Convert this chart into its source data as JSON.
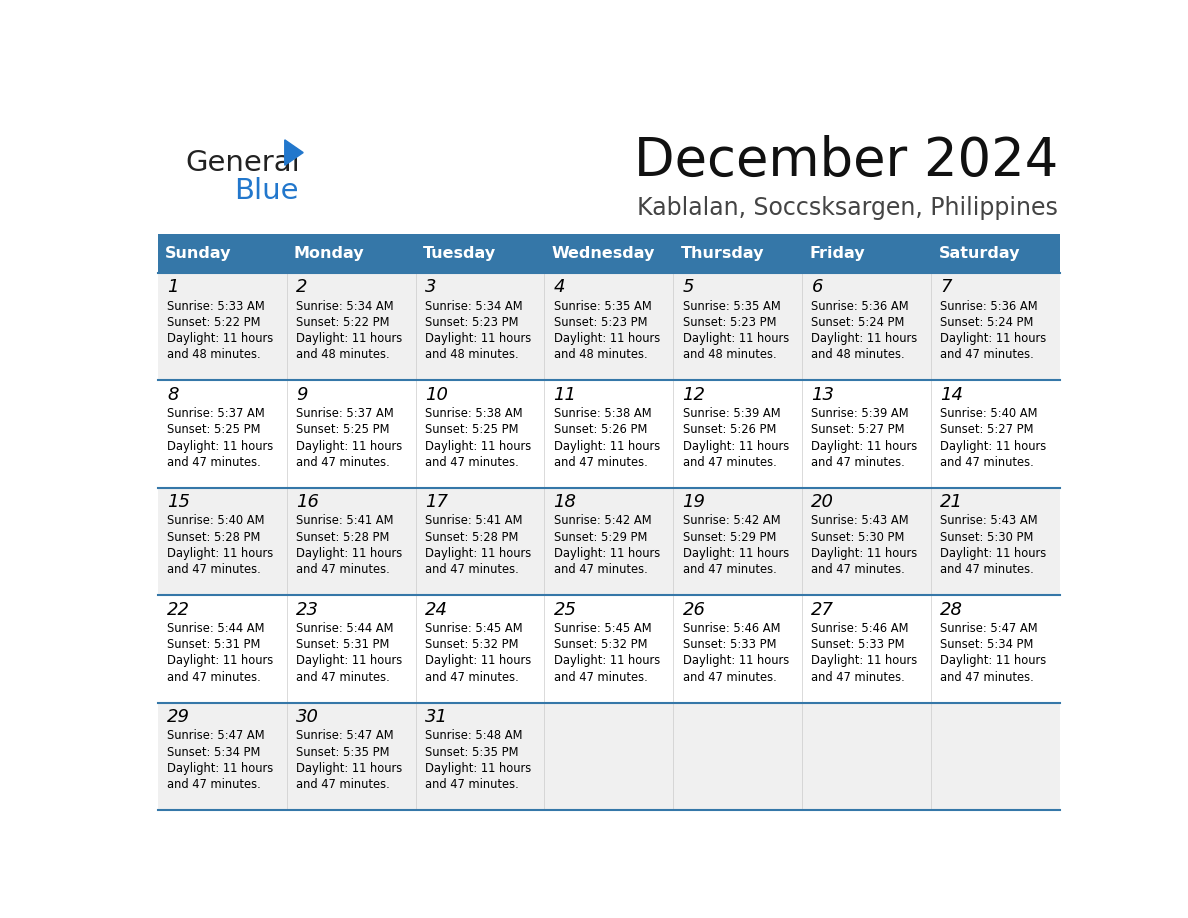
{
  "title": "December 2024",
  "subtitle": "Kablalan, Soccsksargen, Philippines",
  "header_color": "#3577a8",
  "header_text_color": "#ffffff",
  "days_of_week": [
    "Sunday",
    "Monday",
    "Tuesday",
    "Wednesday",
    "Thursday",
    "Friday",
    "Saturday"
  ],
  "bg_color": "#ffffff",
  "row_alt_color": "#f0f0f0",
  "cell_text_color": "#000000",
  "divider_color": "#3577a8",
  "logo_color1": "#222222",
  "logo_color2": "#2277cc",
  "calendar": [
    [
      {
        "day": 1,
        "sunrise": "5:33 AM",
        "sunset": "5:22 PM",
        "daylight": "11 hours and 48 minutes."
      },
      {
        "day": 2,
        "sunrise": "5:34 AM",
        "sunset": "5:22 PM",
        "daylight": "11 hours and 48 minutes."
      },
      {
        "day": 3,
        "sunrise": "5:34 AM",
        "sunset": "5:23 PM",
        "daylight": "11 hours and 48 minutes."
      },
      {
        "day": 4,
        "sunrise": "5:35 AM",
        "sunset": "5:23 PM",
        "daylight": "11 hours and 48 minutes."
      },
      {
        "day": 5,
        "sunrise": "5:35 AM",
        "sunset": "5:23 PM",
        "daylight": "11 hours and 48 minutes."
      },
      {
        "day": 6,
        "sunrise": "5:36 AM",
        "sunset": "5:24 PM",
        "daylight": "11 hours and 48 minutes."
      },
      {
        "day": 7,
        "sunrise": "5:36 AM",
        "sunset": "5:24 PM",
        "daylight": "11 hours and 47 minutes."
      }
    ],
    [
      {
        "day": 8,
        "sunrise": "5:37 AM",
        "sunset": "5:25 PM",
        "daylight": "11 hours and 47 minutes."
      },
      {
        "day": 9,
        "sunrise": "5:37 AM",
        "sunset": "5:25 PM",
        "daylight": "11 hours and 47 minutes."
      },
      {
        "day": 10,
        "sunrise": "5:38 AM",
        "sunset": "5:25 PM",
        "daylight": "11 hours and 47 minutes."
      },
      {
        "day": 11,
        "sunrise": "5:38 AM",
        "sunset": "5:26 PM",
        "daylight": "11 hours and 47 minutes."
      },
      {
        "day": 12,
        "sunrise": "5:39 AM",
        "sunset": "5:26 PM",
        "daylight": "11 hours and 47 minutes."
      },
      {
        "day": 13,
        "sunrise": "5:39 AM",
        "sunset": "5:27 PM",
        "daylight": "11 hours and 47 minutes."
      },
      {
        "day": 14,
        "sunrise": "5:40 AM",
        "sunset": "5:27 PM",
        "daylight": "11 hours and 47 minutes."
      }
    ],
    [
      {
        "day": 15,
        "sunrise": "5:40 AM",
        "sunset": "5:28 PM",
        "daylight": "11 hours and 47 minutes."
      },
      {
        "day": 16,
        "sunrise": "5:41 AM",
        "sunset": "5:28 PM",
        "daylight": "11 hours and 47 minutes."
      },
      {
        "day": 17,
        "sunrise": "5:41 AM",
        "sunset": "5:28 PM",
        "daylight": "11 hours and 47 minutes."
      },
      {
        "day": 18,
        "sunrise": "5:42 AM",
        "sunset": "5:29 PM",
        "daylight": "11 hours and 47 minutes."
      },
      {
        "day": 19,
        "sunrise": "5:42 AM",
        "sunset": "5:29 PM",
        "daylight": "11 hours and 47 minutes."
      },
      {
        "day": 20,
        "sunrise": "5:43 AM",
        "sunset": "5:30 PM",
        "daylight": "11 hours and 47 minutes."
      },
      {
        "day": 21,
        "sunrise": "5:43 AM",
        "sunset": "5:30 PM",
        "daylight": "11 hours and 47 minutes."
      }
    ],
    [
      {
        "day": 22,
        "sunrise": "5:44 AM",
        "sunset": "5:31 PM",
        "daylight": "11 hours and 47 minutes."
      },
      {
        "day": 23,
        "sunrise": "5:44 AM",
        "sunset": "5:31 PM",
        "daylight": "11 hours and 47 minutes."
      },
      {
        "day": 24,
        "sunrise": "5:45 AM",
        "sunset": "5:32 PM",
        "daylight": "11 hours and 47 minutes."
      },
      {
        "day": 25,
        "sunrise": "5:45 AM",
        "sunset": "5:32 PM",
        "daylight": "11 hours and 47 minutes."
      },
      {
        "day": 26,
        "sunrise": "5:46 AM",
        "sunset": "5:33 PM",
        "daylight": "11 hours and 47 minutes."
      },
      {
        "day": 27,
        "sunrise": "5:46 AM",
        "sunset": "5:33 PM",
        "daylight": "11 hours and 47 minutes."
      },
      {
        "day": 28,
        "sunrise": "5:47 AM",
        "sunset": "5:34 PM",
        "daylight": "11 hours and 47 minutes."
      }
    ],
    [
      {
        "day": 29,
        "sunrise": "5:47 AM",
        "sunset": "5:34 PM",
        "daylight": "11 hours and 47 minutes."
      },
      {
        "day": 30,
        "sunrise": "5:47 AM",
        "sunset": "5:35 PM",
        "daylight": "11 hours and 47 minutes."
      },
      {
        "day": 31,
        "sunrise": "5:48 AM",
        "sunset": "5:35 PM",
        "daylight": "11 hours and 47 minutes."
      },
      null,
      null,
      null,
      null
    ]
  ]
}
